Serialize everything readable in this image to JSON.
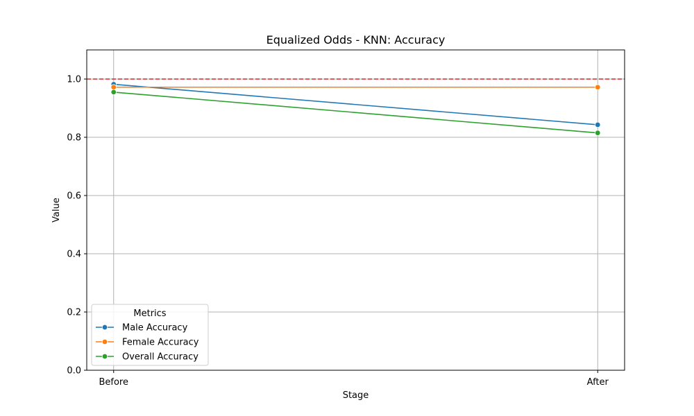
{
  "chart_data": {
    "type": "line",
    "title": "Equalized Odds - KNN: Accuracy",
    "xlabel": "Stage",
    "ylabel": "Value",
    "categories": [
      "Before",
      "After"
    ],
    "ylim": [
      0,
      1.1
    ],
    "yticks": [
      0.0,
      0.2,
      0.4,
      0.6,
      0.8,
      1.0
    ],
    "ytick_labels": [
      "0.0",
      "0.2",
      "0.4",
      "0.6",
      "0.8",
      "1.0"
    ],
    "grid": true,
    "reference_line": {
      "y": 1.0,
      "color": "#d62728",
      "style": "dashed"
    },
    "legend": {
      "title": "Metrics",
      "placement": "lower-left"
    },
    "series": [
      {
        "name": "Male Accuracy",
        "color": "#1f77b4",
        "values": [
          0.982,
          0.843
        ]
      },
      {
        "name": "Female Accuracy",
        "color": "#ff7f0e",
        "values": [
          0.972,
          0.972
        ]
      },
      {
        "name": "Overall Accuracy",
        "color": "#2ca02c",
        "values": [
          0.955,
          0.815
        ]
      }
    ]
  }
}
